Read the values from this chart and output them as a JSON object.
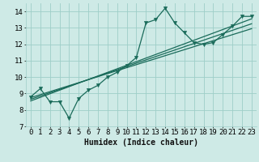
{
  "title": "",
  "xlabel": "Humidex (Indice chaleur)",
  "ylabel": "",
  "xlim": [
    -0.5,
    23.5
  ],
  "ylim": [
    7.0,
    14.5
  ],
  "yticks": [
    7,
    8,
    9,
    10,
    11,
    12,
    13,
    14
  ],
  "xticks": [
    0,
    1,
    2,
    3,
    4,
    5,
    6,
    7,
    8,
    9,
    10,
    11,
    12,
    13,
    14,
    15,
    16,
    17,
    18,
    19,
    20,
    21,
    22,
    23
  ],
  "bg_color": "#ceeae6",
  "grid_color": "#9ecec8",
  "line_color": "#1a6b5a",
  "main_series_x": [
    0,
    1,
    2,
    3,
    4,
    5,
    6,
    7,
    8,
    9,
    10,
    11,
    12,
    13,
    14,
    15,
    16,
    17,
    18,
    19,
    20,
    21,
    22,
    23
  ],
  "main_series_y": [
    8.8,
    9.3,
    8.5,
    8.5,
    7.5,
    8.7,
    9.2,
    9.5,
    10.0,
    10.3,
    10.7,
    11.2,
    13.3,
    13.5,
    14.2,
    13.3,
    12.7,
    12.1,
    12.0,
    12.1,
    12.6,
    13.1,
    13.7,
    13.7
  ],
  "reg_line1_x": [
    0,
    23
  ],
  "reg_line1_y": [
    8.55,
    13.55
  ],
  "reg_line2_x": [
    0,
    23
  ],
  "reg_line2_y": [
    8.65,
    13.25
  ],
  "reg_line3_x": [
    0,
    23
  ],
  "reg_line3_y": [
    8.75,
    12.95
  ],
  "marker": "v",
  "markersize": 3.0,
  "linewidth": 0.9,
  "reg_linewidth": 0.9,
  "xlabel_fontsize": 7,
  "tick_fontsize": 6.5
}
